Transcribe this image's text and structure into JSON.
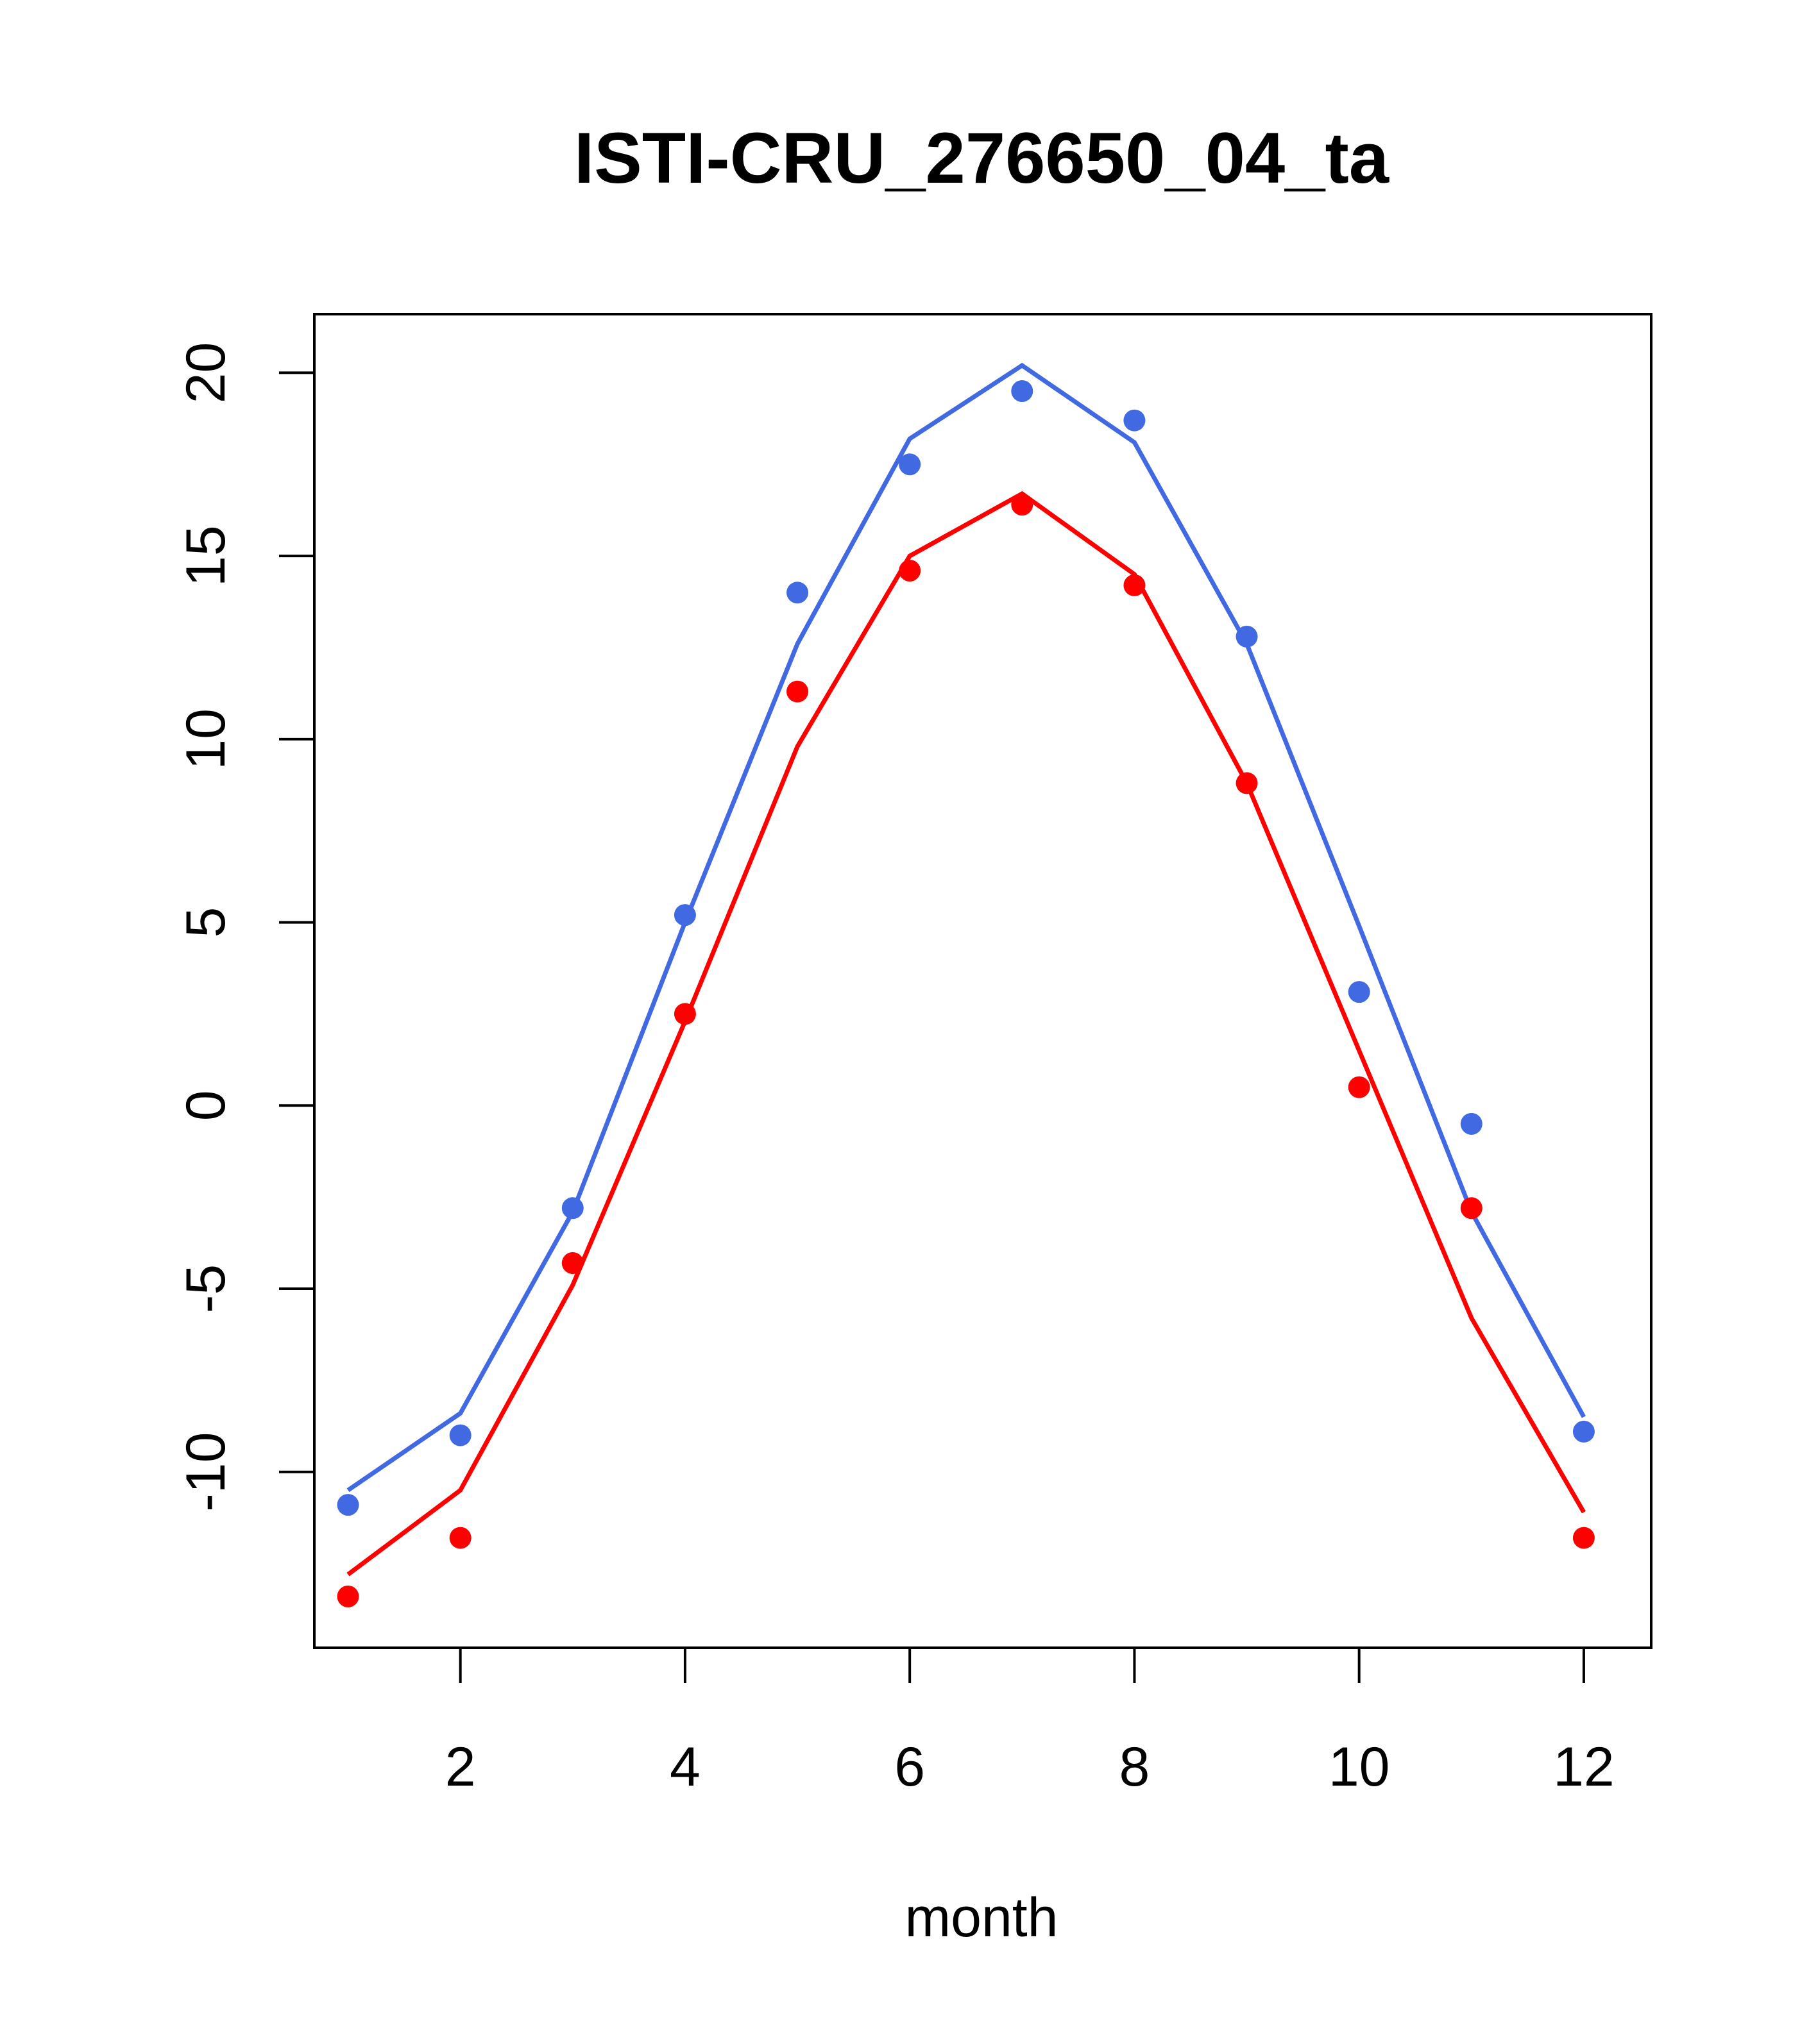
{
  "chart_data": {
    "type": "line",
    "title": "ISTI-CRU_276650_04_ta",
    "xlabel": "month",
    "ylabel": "",
    "xlim": [
      0.7,
      12.6
    ],
    "ylim": [
      -14.8,
      21.6
    ],
    "xticks": [
      2,
      4,
      6,
      8,
      10,
      12
    ],
    "yticks": [
      -10,
      -5,
      0,
      5,
      10,
      15,
      20
    ],
    "grid": false,
    "x": [
      1,
      2,
      3,
      4,
      5,
      6,
      7,
      8,
      9,
      10,
      11,
      12
    ],
    "series": [
      {
        "color": "#4169E1",
        "line": [
          -10.5,
          -8.4,
          -2.9,
          5.0,
          12.6,
          18.2,
          20.2,
          18.1,
          12.6,
          4.9,
          -2.9,
          -8.5
        ],
        "points": [
          -10.9,
          -9.0,
          -2.8,
          5.2,
          14.0,
          17.5,
          19.5,
          18.7,
          12.8,
          3.1,
          -0.5,
          -8.9
        ]
      },
      {
        "color": "#FF0000",
        "line": [
          -12.8,
          -10.5,
          -4.9,
          2.3,
          9.8,
          15.0,
          16.7,
          14.5,
          8.8,
          1.5,
          -5.8,
          -11.1
        ],
        "points": [
          -13.4,
          -11.8,
          -4.3,
          2.5,
          11.3,
          14.6,
          16.4,
          14.2,
          8.8,
          0.5,
          -2.8,
          -11.8
        ]
      }
    ]
  }
}
